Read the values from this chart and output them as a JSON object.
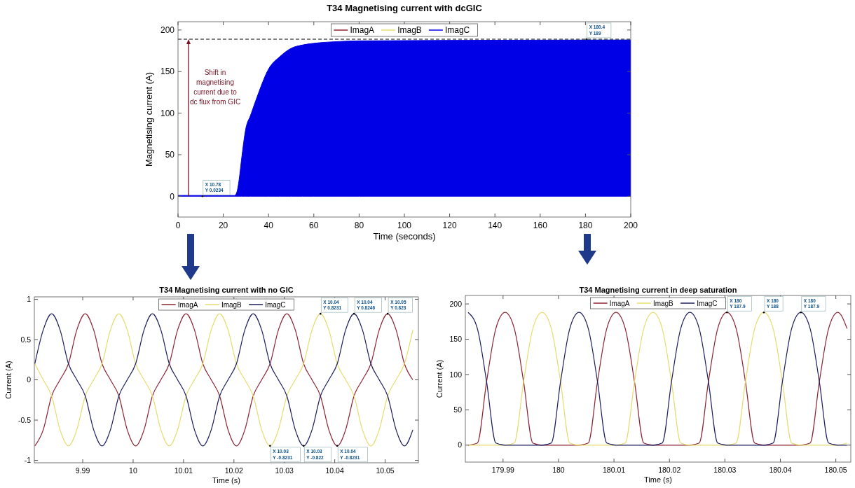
{
  "chart_data": [
    {
      "type": "line",
      "title": "T34 Magnetising current with dcGIC",
      "xlabel": "Time (seconds)",
      "ylabel": "Magnetising current (A)",
      "xlim": [
        0,
        200
      ],
      "ylim": [
        -25,
        210
      ],
      "xticks": [
        0,
        20,
        40,
        60,
        80,
        100,
        120,
        140,
        160,
        180,
        200
      ],
      "yticks": [
        0,
        50,
        100,
        150,
        200
      ],
      "legend": "top",
      "series": [
        {
          "name": "ImagA",
          "color": "#8b2332"
        },
        {
          "name": "ImagB",
          "color": "#e6dc6e"
        },
        {
          "name": "ImagC",
          "type": "area",
          "color": "#0000e6",
          "x": [
            0,
            25,
            26,
            27,
            28,
            30,
            32,
            35,
            40,
            45,
            50,
            55,
            60,
            70,
            80,
            200
          ],
          "values": [
            1,
            1,
            5,
            20,
            43,
            82,
            97,
            120,
            153,
            168,
            178,
            182,
            184,
            186,
            187,
            188
          ]
        }
      ],
      "ref_lines": [
        {
          "axis": "y",
          "value": 189,
          "color": "#000000",
          "line_style": "dashed"
        }
      ],
      "annotations": [
        "Shift in magnetising current due to dc flux from GIC",
        {
          "text": "X 10.78\nY 0.0234",
          "x": 10.78,
          "y": 0.0234
        },
        {
          "text": "X 180.4\nY 189",
          "x": 180.4,
          "y": 189
        }
      ]
    },
    {
      "type": "line",
      "title": "T34 Magnetising current with no GIC",
      "xlabel": "Time (s)",
      "ylabel": "Current (A)",
      "xlim": [
        9.9804,
        10.0566
      ],
      "ylim": [
        -1.03,
        1.03
      ],
      "xticks": [
        9.99,
        10,
        10.01,
        10.02,
        10.03,
        10.04,
        10.05
      ],
      "yticks": [
        -1,
        -0.5,
        0,
        0.5,
        1
      ],
      "legend": "top",
      "x": [
        9.9805,
        9.98217,
        9.98383,
        9.9855,
        9.98717,
        9.98883,
        9.9905,
        9.99217,
        9.99383,
        9.9955,
        9.99717,
        9.99883,
        10.0005,
        10.00217,
        10.00383,
        10.0055,
        10.00717,
        10.00883,
        10.0105,
        10.01217,
        10.01383,
        10.0155,
        10.01717,
        10.01883,
        10.0205,
        10.02217,
        10.02383,
        10.0255,
        10.02717,
        10.02883,
        10.0305,
        10.03217,
        10.03383,
        10.0355,
        10.03717,
        10.03883,
        10.0405,
        10.04217,
        10.04383,
        10.0455,
        10.04717,
        10.04883,
        10.0505,
        10.05217,
        10.05383,
        10.0555
      ],
      "series": [
        {
          "name": "ImagA",
          "color": "#8b2332",
          "values": [
            -0.82,
            -0.62,
            -0.2,
            0,
            0.2,
            0.62,
            0.82,
            0.62,
            0.2,
            0,
            -0.2,
            -0.62,
            -0.82,
            -0.62,
            -0.2,
            0,
            0.2,
            0.62,
            0.82,
            0.62,
            0.2,
            0,
            -0.2,
            -0.62,
            -0.82,
            -0.62,
            -0.2,
            0,
            0.2,
            0.62,
            0.82,
            0.62,
            0.2,
            0,
            -0.2,
            -0.62,
            -0.82,
            -0.62,
            -0.2,
            0,
            0.2,
            0.62,
            0.82,
            0.62,
            0.2,
            0
          ]
        },
        {
          "name": "ImagB",
          "color": "#e6dc6e",
          "values": [
            0.2,
            0,
            -0.2,
            -0.62,
            -0.82,
            -0.62,
            -0.2,
            0,
            0.2,
            0.62,
            0.82,
            0.62,
            0.2,
            0,
            -0.2,
            -0.62,
            -0.82,
            -0.62,
            -0.2,
            0,
            0.2,
            0.62,
            0.82,
            0.62,
            0.2,
            0,
            -0.2,
            -0.62,
            -0.82,
            -0.62,
            -0.2,
            0,
            0.2,
            0.62,
            0.82,
            0.62,
            0.2,
            0,
            -0.2,
            -0.62,
            -0.82,
            -0.62,
            -0.2,
            0,
            0.2,
            0.62
          ]
        },
        {
          "name": "ImagC",
          "color": "#1c1c5e",
          "values": [
            0.2,
            0.62,
            0.82,
            0.62,
            0.2,
            0,
            -0.2,
            -0.62,
            -0.82,
            -0.62,
            -0.2,
            0,
            0.2,
            0.62,
            0.82,
            0.62,
            0.2,
            0,
            -0.2,
            -0.62,
            -0.82,
            -0.62,
            -0.2,
            0,
            0.2,
            0.62,
            0.82,
            0.62,
            0.2,
            0,
            -0.2,
            -0.62,
            -0.82,
            -0.62,
            -0.2,
            0,
            0.2,
            0.62,
            0.82,
            0.62,
            0.2,
            0,
            -0.2,
            -0.62,
            -0.82,
            -0.62
          ]
        }
      ],
      "annotations": [
        {
          "text": "X 10.04\nY 0.8231",
          "x": 10.03717,
          "y": 0.82
        },
        {
          "text": "X 10.04\nY 0.8246",
          "x": 10.04383,
          "y": 0.82
        },
        {
          "text": "X 10.05\nY 0.823",
          "x": 10.0505,
          "y": 0.82
        },
        {
          "text": "X 10.03\nY -0.8231",
          "x": 10.02717,
          "y": -0.82
        },
        {
          "text": "X 10.03\nY -0.822",
          "x": 10.03383,
          "y": -0.82
        },
        {
          "text": "X 10.04\nY -0.8231",
          "x": 10.0405,
          "y": -0.82
        }
      ]
    },
    {
      "type": "line",
      "title": "T34 Magnetising current in deep saturation",
      "xlabel": "Time (s)",
      "ylabel": "Current (A)",
      "xlim": [
        179.9832,
        180.0527
      ],
      "ylim": [
        -24,
        212
      ],
      "xticks": [
        179.99,
        180,
        180.01,
        180.02,
        180.03,
        180.04,
        180.05
      ],
      "yticks": [
        0,
        50,
        100,
        150,
        200
      ],
      "legend": "top",
      "x": [
        179.9837,
        179.98537,
        179.98703,
        179.9887,
        179.99037,
        179.99203,
        179.9937,
        179.99537,
        179.99703,
        179.9987,
        180.00037,
        180.00203,
        180.0037,
        180.00537,
        180.00703,
        180.0087,
        180.01037,
        180.01203,
        180.0137,
        180.01537,
        180.01703,
        180.0187,
        180.02037,
        180.02203,
        180.0237,
        180.02537,
        180.02703,
        180.0287,
        180.03037,
        180.03203,
        180.0337,
        180.03537,
        180.03703,
        180.0387,
        180.04037,
        180.04203,
        180.0437,
        180.04537,
        180.04703,
        180.0487,
        180.05037,
        180.05203
      ],
      "series": [
        {
          "name": "ImagA",
          "color": "#8b2332",
          "values": [
            0,
            3,
            90,
            165,
            188,
            165,
            90,
            3,
            0,
            0,
            0,
            0,
            0,
            3,
            90,
            165,
            188,
            165,
            90,
            3,
            0,
            0,
            0,
            0,
            0,
            3,
            90,
            165,
            188,
            165,
            90,
            3,
            0,
            0,
            0,
            0,
            0,
            3,
            90,
            165,
            188,
            165
          ]
        },
        {
          "name": "ImagB",
          "color": "#e6dc6e",
          "values": [
            0,
            0,
            0,
            0,
            0,
            3,
            90,
            165,
            188,
            165,
            90,
            3,
            0,
            0,
            0,
            0,
            0,
            3,
            90,
            165,
            188,
            165,
            90,
            3,
            0,
            0,
            0,
            0,
            0,
            3,
            90,
            165,
            188,
            165,
            90,
            3,
            0,
            0,
            0,
            0,
            0,
            3
          ]
        },
        {
          "name": "ImagC",
          "color": "#1c1c5e",
          "values": [
            188,
            165,
            90,
            3,
            0,
            0,
            0,
            0,
            0,
            3,
            90,
            165,
            188,
            165,
            90,
            3,
            0,
            0,
            0,
            0,
            0,
            3,
            90,
            165,
            188,
            165,
            90,
            3,
            0,
            0,
            0,
            0,
            0,
            3,
            90,
            165,
            188,
            165,
            90,
            3,
            0,
            0
          ]
        }
      ],
      "annotations": [
        {
          "text": "X 180\nY 187.9",
          "x": 180.03037,
          "y": 188
        },
        {
          "text": "X 180\nY 188",
          "x": 180.03703,
          "y": 188
        },
        {
          "text": "X 180\nY 187.9",
          "x": 180.0437,
          "y": 188
        }
      ]
    }
  ]
}
